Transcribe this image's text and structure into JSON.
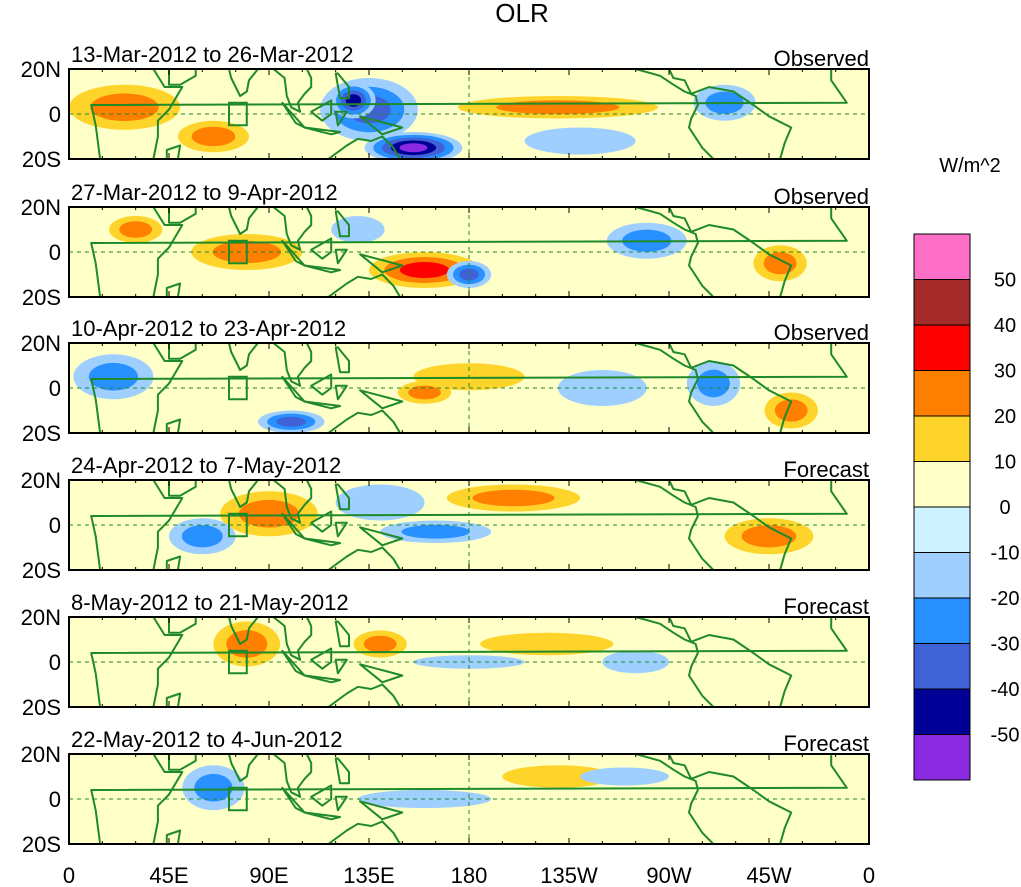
{
  "title": "OLR",
  "units": "W/m^2",
  "lat_ticks": [
    "20N",
    "0",
    "20S"
  ],
  "lon_ticks": [
    "0",
    "45E",
    "90E",
    "135E",
    "180",
    "135W",
    "90W",
    "45W",
    "0"
  ],
  "colorbar": {
    "labels": [
      "50",
      "40",
      "30",
      "20",
      "10",
      "0",
      "-10",
      "-20",
      "-30",
      "-40",
      "-50"
    ],
    "colors": [
      "#ff6ec7",
      "#a52a2a",
      "#ff0000",
      "#ff7f00",
      "#ffd42a",
      "#ffffc8",
      "#ccf3ff",
      "#9ecfff",
      "#2891ff",
      "#3f62d6",
      "#000096",
      "#8a2be2"
    ]
  },
  "panels": [
    {
      "period": "13-Mar-2012 to 26-Mar-2012",
      "type": "Observed"
    },
    {
      "period": "27-Mar-2012 to 9-Apr-2012",
      "type": "Observed"
    },
    {
      "period": "10-Apr-2012 to 23-Apr-2012",
      "type": "Observed"
    },
    {
      "period": "24-Apr-2012 to 7-May-2012",
      "type": "Forecast"
    },
    {
      "period": "8-May-2012 to 21-May-2012",
      "type": "Forecast"
    },
    {
      "period": "22-May-2012 to 4-Jun-2012",
      "type": "Forecast"
    }
  ],
  "anomalies": [
    [
      {
        "lon": 135,
        "lat": 2,
        "rx": 22,
        "ry": 14,
        "v": -3
      },
      {
        "lon": 128,
        "lat": 6,
        "rx": 10,
        "ry": 8,
        "v": -4
      },
      {
        "lon": 155,
        "lat": -15,
        "rx": 22,
        "ry": 7,
        "v": -5
      },
      {
        "lon": 65,
        "lat": -10,
        "rx": 16,
        "ry": 7,
        "v": 2
      },
      {
        "lon": 25,
        "lat": 3,
        "rx": 25,
        "ry": 10,
        "v": 2
      },
      {
        "lon": 220,
        "lat": 3,
        "rx": 45,
        "ry": 5,
        "v": 2
      },
      {
        "lon": 295,
        "lat": 5,
        "rx": 14,
        "ry": 8,
        "v": -2
      },
      {
        "lon": 230,
        "lat": -12,
        "rx": 25,
        "ry": 6,
        "v": -1
      }
    ],
    [
      {
        "lon": 80,
        "lat": 0,
        "rx": 25,
        "ry": 8,
        "v": 2
      },
      {
        "lon": 160,
        "lat": -8,
        "rx": 25,
        "ry": 8,
        "v": 3
      },
      {
        "lon": 30,
        "lat": 10,
        "rx": 12,
        "ry": 6,
        "v": 2
      },
      {
        "lon": 180,
        "lat": -10,
        "rx": 10,
        "ry": 6,
        "v": -3
      },
      {
        "lon": 320,
        "lat": -5,
        "rx": 12,
        "ry": 8,
        "v": 2
      },
      {
        "lon": 260,
        "lat": 5,
        "rx": 18,
        "ry": 8,
        "v": -2
      },
      {
        "lon": 130,
        "lat": 10,
        "rx": 12,
        "ry": 6,
        "v": -1
      }
    ],
    [
      {
        "lon": 20,
        "lat": 5,
        "rx": 18,
        "ry": 10,
        "v": -2
      },
      {
        "lon": 100,
        "lat": -15,
        "rx": 15,
        "ry": 5,
        "v": -3
      },
      {
        "lon": 180,
        "lat": 5,
        "rx": 25,
        "ry": 6,
        "v": 1
      },
      {
        "lon": 240,
        "lat": 0,
        "rx": 20,
        "ry": 8,
        "v": -1
      },
      {
        "lon": 325,
        "lat": -10,
        "rx": 12,
        "ry": 8,
        "v": 2
      },
      {
        "lon": 290,
        "lat": 2,
        "rx": 12,
        "ry": 10,
        "v": -2
      },
      {
        "lon": 160,
        "lat": -2,
        "rx": 12,
        "ry": 5,
        "v": 2
      }
    ],
    [
      {
        "lon": 90,
        "lat": 5,
        "rx": 22,
        "ry": 10,
        "v": 2
      },
      {
        "lon": 200,
        "lat": 12,
        "rx": 30,
        "ry": 6,
        "v": 2
      },
      {
        "lon": 315,
        "lat": -5,
        "rx": 20,
        "ry": 8,
        "v": 2
      },
      {
        "lon": 60,
        "lat": -5,
        "rx": 15,
        "ry": 8,
        "v": -2
      },
      {
        "lon": 165,
        "lat": -3,
        "rx": 25,
        "ry": 5,
        "v": -2
      },
      {
        "lon": 140,
        "lat": 10,
        "rx": 20,
        "ry": 8,
        "v": -1
      }
    ],
    [
      {
        "lon": 80,
        "lat": 8,
        "rx": 15,
        "ry": 10,
        "v": 2
      },
      {
        "lon": 215,
        "lat": 8,
        "rx": 30,
        "ry": 5,
        "v": 1
      },
      {
        "lon": 140,
        "lat": 8,
        "rx": 12,
        "ry": 6,
        "v": 2
      },
      {
        "lon": 180,
        "lat": 0,
        "rx": 25,
        "ry": 3,
        "v": -1
      },
      {
        "lon": 255,
        "lat": 0,
        "rx": 15,
        "ry": 5,
        "v": -1
      }
    ],
    [
      {
        "lon": 65,
        "lat": 5,
        "rx": 14,
        "ry": 10,
        "v": -2
      },
      {
        "lon": 220,
        "lat": 10,
        "rx": 25,
        "ry": 5,
        "v": 1
      },
      {
        "lon": 160,
        "lat": 0,
        "rx": 30,
        "ry": 4,
        "v": -1
      },
      {
        "lon": 250,
        "lat": 10,
        "rx": 20,
        "ry": 4,
        "v": -1
      }
    ]
  ],
  "land": [
    [
      [
        -17,
        15
      ],
      [
        -10,
        5
      ],
      [
        10,
        4
      ],
      [
        12,
        -5
      ],
      [
        14,
        -20
      ],
      [
        38,
        -20
      ],
      [
        40,
        -10
      ],
      [
        40,
        -3
      ],
      [
        45,
        2
      ],
      [
        51,
        12
      ],
      [
        43,
        12
      ],
      [
        38,
        20
      ],
      [
        -17,
        20
      ]
    ],
    [
      [
        44,
        -16
      ],
      [
        50,
        -14
      ],
      [
        49,
        -20
      ],
      [
        44,
        -20
      ]
    ],
    [
      [
        45,
        20
      ],
      [
        57,
        20
      ],
      [
        57,
        17
      ],
      [
        50,
        13
      ],
      [
        45,
        13
      ]
    ],
    [
      [
        67,
        20
      ],
      [
        72,
        20
      ],
      [
        73,
        16
      ],
      [
        77,
        8
      ],
      [
        80,
        10
      ],
      [
        81,
        15
      ],
      [
        85,
        20
      ]
    ],
    [
      [
        92,
        20
      ],
      [
        97,
        16
      ],
      [
        98,
        8
      ],
      [
        100,
        3
      ],
      [
        104,
        1
      ],
      [
        103,
        5
      ],
      [
        106,
        9
      ],
      [
        109,
        12
      ],
      [
        109,
        16
      ],
      [
        107,
        20
      ]
    ],
    [
      [
        96,
        5
      ],
      [
        106,
        -6
      ],
      [
        102,
        -4
      ]
    ],
    [
      [
        109,
        1
      ],
      [
        118,
        6
      ],
      [
        118,
        0
      ],
      [
        114,
        -3
      ]
    ],
    [
      [
        106,
        -6
      ],
      [
        122,
        -8
      ],
      [
        118,
        -9
      ]
    ],
    [
      [
        120,
        1
      ],
      [
        125,
        1
      ],
      [
        121,
        -5
      ]
    ],
    [
      [
        131,
        -1
      ],
      [
        150,
        -6
      ],
      [
        141,
        -9
      ]
    ],
    [
      [
        120,
        18
      ],
      [
        122,
        7
      ],
      [
        126,
        7
      ],
      [
        126,
        12
      ],
      [
        121,
        18
      ]
    ],
    [
      [
        113,
        -20
      ],
      [
        114,
        -22
      ],
      [
        125,
        -14
      ],
      [
        130,
        -11
      ],
      [
        136,
        -12
      ],
      [
        141,
        -10
      ],
      [
        146,
        -15
      ],
      [
        149,
        -20
      ]
    ],
    [
      [
        -105,
        20
      ],
      [
        -94,
        17
      ],
      [
        -88,
        13
      ],
      [
        -83,
        10
      ],
      [
        -78,
        8
      ],
      [
        -77,
        4
      ],
      [
        -80,
        -2
      ],
      [
        -81,
        -6
      ],
      [
        -75,
        -15
      ],
      [
        -70,
        -20
      ],
      [
        -40,
        -20
      ],
      [
        -38,
        -13
      ],
      [
        -35,
        -6
      ],
      [
        -45,
        -1
      ],
      [
        -52,
        4
      ],
      [
        -61,
        10
      ],
      [
        -72,
        12
      ],
      [
        -80,
        9
      ],
      [
        -83,
        15
      ],
      [
        -88,
        16
      ],
      [
        -90,
        20
      ]
    ]
  ]
}
